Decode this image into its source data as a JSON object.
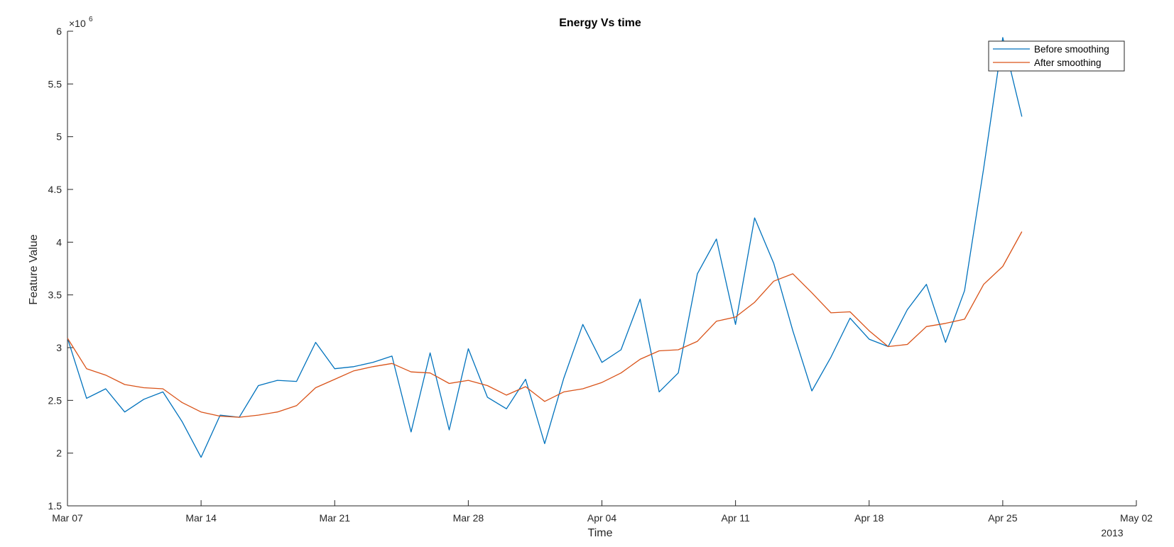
{
  "chart_data": {
    "type": "line",
    "title": "Energy Vs time",
    "xlabel": "Time",
    "ylabel": "Feature Value",
    "y_exponent_label": "×10",
    "y_exponent_power": "6",
    "year_label": "2013",
    "ylim": [
      1.5,
      6
    ],
    "y_ticks": [
      1.5,
      2,
      2.5,
      3,
      3.5,
      4,
      4.5,
      5,
      5.5,
      6
    ],
    "y_tick_labels": [
      "1.5",
      "2",
      "2.5",
      "3",
      "3.5",
      "4",
      "4.5",
      "5",
      "5.5",
      "6"
    ],
    "xlim_days": [
      0,
      56
    ],
    "x_ticks_days": [
      0,
      7,
      14,
      21,
      28,
      35,
      42,
      49,
      56
    ],
    "x_tick_labels": [
      "Mar 07",
      "Mar 14",
      "Mar 21",
      "Mar 28",
      "Apr 04",
      "Apr 11",
      "Apr 18",
      "Apr 25",
      "May 02"
    ],
    "x_days": [
      0,
      1,
      2,
      3,
      4,
      5,
      6,
      7,
      8,
      9,
      10,
      11,
      12,
      13,
      14,
      15,
      16,
      17,
      18,
      19,
      20,
      21,
      22,
      23,
      24,
      25,
      26,
      27,
      28,
      29,
      30,
      31,
      32,
      33,
      34,
      35,
      36,
      37,
      38,
      39,
      40,
      41,
      42,
      43,
      44,
      45,
      46,
      47,
      48,
      49,
      50
    ],
    "legend_position": "top-right",
    "series": [
      {
        "name": "Before smoothing",
        "color": "#0072BD",
        "values": [
          3.09,
          2.52,
          2.61,
          2.39,
          2.51,
          2.58,
          2.3,
          1.96,
          2.36,
          2.34,
          2.64,
          2.69,
          2.68,
          3.05,
          2.8,
          2.82,
          2.86,
          2.92,
          2.2,
          2.95,
          2.22,
          2.99,
          2.53,
          2.42,
          2.7,
          2.09,
          2.71,
          3.22,
          2.86,
          2.98,
          3.46,
          2.58,
          2.76,
          3.7,
          4.03,
          3.22,
          4.23,
          3.8,
          3.16,
          2.59,
          2.91,
          3.28,
          3.08,
          3.01,
          3.36,
          3.6,
          3.05,
          3.54,
          4.7,
          5.94,
          5.19
        ]
      },
      {
        "name": "After smoothing",
        "color": "#D95319",
        "values": [
          3.09,
          2.8,
          2.74,
          2.65,
          2.62,
          2.61,
          2.48,
          2.39,
          2.35,
          2.34,
          2.36,
          2.39,
          2.45,
          2.62,
          2.7,
          2.78,
          2.82,
          2.85,
          2.77,
          2.76,
          2.66,
          2.69,
          2.64,
          2.55,
          2.63,
          2.49,
          2.58,
          2.61,
          2.67,
          2.76,
          2.89,
          2.97,
          2.98,
          3.06,
          3.25,
          3.29,
          3.43,
          3.63,
          3.7,
          3.52,
          3.33,
          3.34,
          3.16,
          3.01,
          3.03,
          3.2,
          3.23,
          3.27,
          3.6,
          3.77,
          4.1
        ]
      }
    ]
  }
}
